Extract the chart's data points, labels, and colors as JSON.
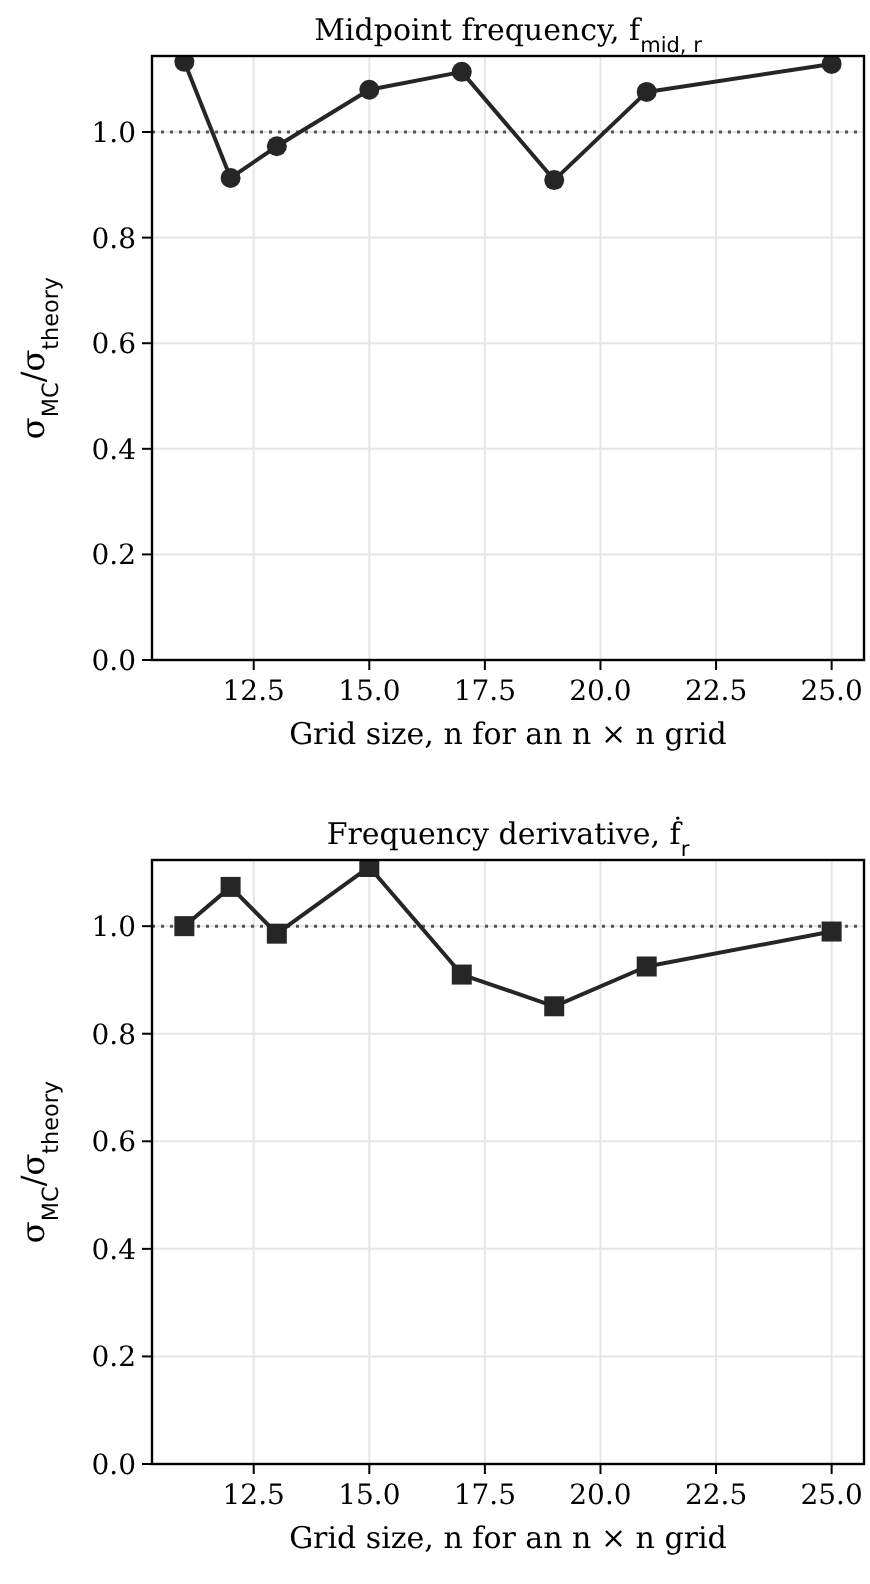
{
  "chart_data": [
    {
      "type": "line",
      "title": "Midpoint frequency, f$_{mid, r}$",
      "xlabel": "Grid size, n for an n × n grid",
      "ylabel": "σ$_{MC}$/σ$_{theory}$",
      "x": [
        11,
        12,
        13,
        15,
        17,
        19,
        21,
        25
      ],
      "series": [
        {
          "color": "#262626",
          "values": [
            1.133,
            0.913,
            0.973,
            1.08,
            1.114,
            0.909,
            1.076,
            1.129
          ]
        }
      ],
      "marker": "circle",
      "line_style": "solid",
      "grid": true,
      "xlim": [
        10.3,
        25.7
      ],
      "xticks": [
        {
          "value": 12.5,
          "label": "12.5"
        },
        {
          "value": 15,
          "label": "15.0"
        },
        {
          "value": 17.5,
          "label": "17.5"
        },
        {
          "value": 20,
          "label": "20.0"
        },
        {
          "value": 22.5,
          "label": "22.5"
        },
        {
          "value": 25,
          "label": "25.0"
        }
      ],
      "ylim": [
        0,
        1.144
      ],
      "yticks": [
        {
          "value": 0,
          "label": "0.0"
        },
        {
          "value": 0.2,
          "label": "0.2"
        },
        {
          "value": 0.4,
          "label": "0.4"
        },
        {
          "value": 0.6,
          "label": "0.6"
        },
        {
          "value": 0.8,
          "label": "0.8"
        },
        {
          "value": 1,
          "label": "1.0"
        }
      ],
      "ref_lines": [
        {
          "axis": "y",
          "value": 1,
          "color": "#555555",
          "line_style": "dotted"
        }
      ]
    },
    {
      "type": "line",
      "title": "Frequency derivative, ḟ$_{r}$",
      "xlabel": "Grid size, n for an n × n grid",
      "ylabel": "σ$_{MC}$/σ$_{theory}$",
      "x": [
        11,
        12,
        13,
        15,
        17,
        19,
        21,
        25
      ],
      "series": [
        {
          "color": "#262626",
          "values": [
            1.0,
            1.073,
            0.986,
            1.11,
            0.91,
            0.851,
            0.925,
            0.99
          ]
        }
      ],
      "marker": "square",
      "line_style": "solid",
      "grid": true,
      "xlim": [
        10.3,
        25.7
      ],
      "xticks": [
        {
          "value": 12.5,
          "label": "12.5"
        },
        {
          "value": 15,
          "label": "15.0"
        },
        {
          "value": 17.5,
          "label": "17.5"
        },
        {
          "value": 20,
          "label": "20.0"
        },
        {
          "value": 22.5,
          "label": "22.5"
        },
        {
          "value": 25,
          "label": "25.0"
        }
      ],
      "ylim": [
        0,
        1.123
      ],
      "yticks": [
        {
          "value": 0,
          "label": "0.0"
        },
        {
          "value": 0.2,
          "label": "0.2"
        },
        {
          "value": 0.4,
          "label": "0.4"
        },
        {
          "value": 0.6,
          "label": "0.6"
        },
        {
          "value": 0.8,
          "label": "0.8"
        },
        {
          "value": 1,
          "label": "1.0"
        }
      ],
      "ref_lines": [
        {
          "axis": "y",
          "value": 1,
          "color": "#555555",
          "line_style": "dotted"
        }
      ]
    }
  ]
}
